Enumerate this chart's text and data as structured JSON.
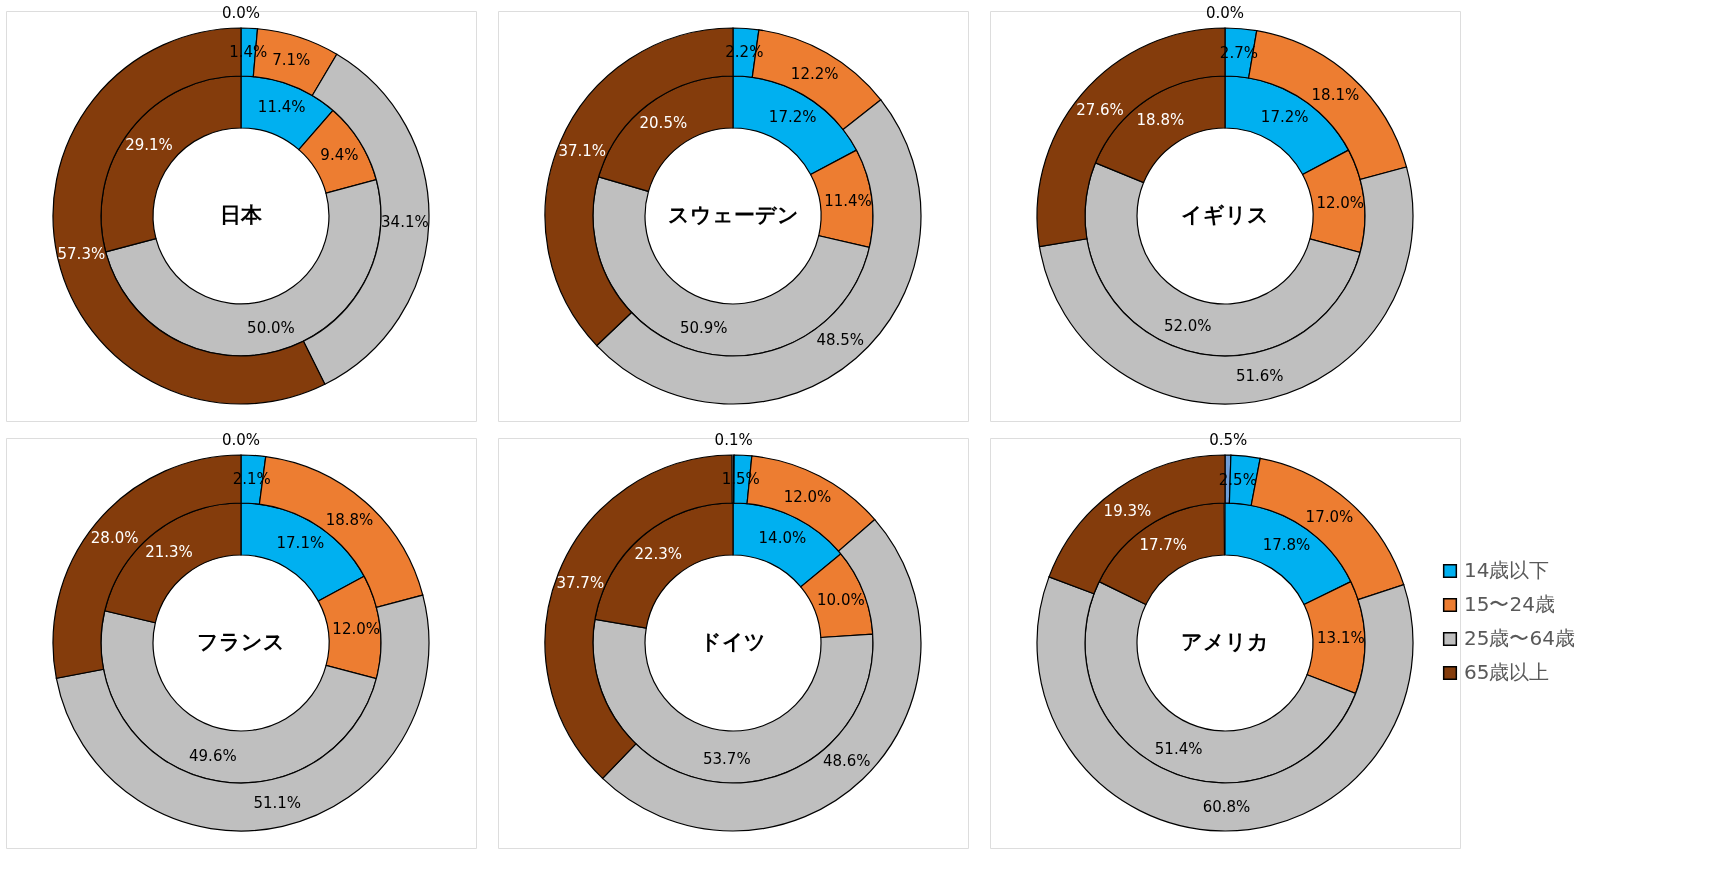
{
  "chart_data": [
    {
      "type": "donut",
      "title": "日本",
      "legend": false,
      "data_labels": false,
      "categories": [
        null,
        null,
        null,
        null,
        null
      ],
      "colors": [
        "#6f9fd8",
        "#00b0f0",
        "#ed7d31",
        "#bfbfbf",
        "#843c0c"
      ],
      "series": [
        {
          "values": [
            null,
            11.4,
            9.4,
            50.0,
            29.1
          ],
          "value_labels": [
            null,
            "11.4%",
            "9.4%",
            "50.0%",
            "29.1%"
          ]
        },
        {
          "values": [
            0.0,
            1.4,
            7.1,
            34.1,
            57.3
          ],
          "value_labels": [
            "0.0%",
            "1.4%",
            "7.1%",
            "34.1%",
            "57.3%"
          ]
        }
      ]
    },
    {
      "type": "donut",
      "title": "スウェーデン",
      "legend": false,
      "data_labels": false,
      "categories": [
        null,
        null,
        null,
        null,
        null
      ],
      "colors": [
        "#6f9fd8",
        "#00b0f0",
        "#ed7d31",
        "#bfbfbf",
        "#843c0c"
      ],
      "series": [
        {
          "values": [
            null,
            17.2,
            11.4,
            50.9,
            20.5
          ],
          "value_labels": [
            null,
            "17.2%",
            "11.4%",
            "50.9%",
            "20.5%"
          ]
        },
        {
          "values": [
            null,
            2.2,
            12.2,
            48.5,
            37.1
          ],
          "value_labels": [
            null,
            "2.2%",
            "12.2%",
            "48.5%",
            "37.1%"
          ]
        }
      ]
    },
    {
      "type": "donut",
      "title": "イギリス",
      "legend": false,
      "data_labels": false,
      "categories": [
        null,
        null,
        null,
        null,
        null
      ],
      "colors": [
        "#6f9fd8",
        "#00b0f0",
        "#ed7d31",
        "#bfbfbf",
        "#843c0c"
      ],
      "series": [
        {
          "values": [
            null,
            17.2,
            12.0,
            52.0,
            18.8
          ],
          "value_labels": [
            null,
            "17.2%",
            "12.0%",
            "52.0%",
            "18.8%"
          ]
        },
        {
          "values": [
            0.0,
            2.7,
            18.1,
            51.6,
            27.6
          ],
          "value_labels": [
            "0.0%",
            "2.7%",
            "18.1%",
            "51.6%",
            "27.6%"
          ]
        }
      ]
    },
    {
      "type": "donut",
      "title": "フランス",
      "legend": false,
      "data_labels": false,
      "categories": [
        null,
        null,
        null,
        null,
        null
      ],
      "colors": [
        "#6f9fd8",
        "#00b0f0",
        "#ed7d31",
        "#bfbfbf",
        "#843c0c"
      ],
      "series": [
        {
          "values": [
            null,
            17.1,
            12.0,
            49.6,
            21.3
          ],
          "value_labels": [
            null,
            "17.1%",
            "12.0%",
            "49.6%",
            "21.3%"
          ]
        },
        {
          "values": [
            0.0,
            2.1,
            18.8,
            51.1,
            28.0
          ],
          "value_labels": [
            "0.0%",
            "2.1%",
            "18.8%",
            "51.1%",
            "28.0%"
          ]
        }
      ]
    },
    {
      "type": "donut",
      "title": "ドイツ",
      "legend": false,
      "data_labels": false,
      "categories": [
        null,
        null,
        null,
        null,
        null
      ],
      "colors": [
        "#6f9fd8",
        "#00b0f0",
        "#ed7d31",
        "#bfbfbf",
        "#843c0c"
      ],
      "series": [
        {
          "values": [
            null,
            14.0,
            10.0,
            53.7,
            22.3
          ],
          "value_labels": [
            null,
            "14.0%",
            "10.0%",
            "53.7%",
            "22.3%"
          ]
        },
        {
          "values": [
            0.1,
            1.5,
            12.0,
            48.6,
            37.7
          ],
          "value_labels": [
            "0.1%",
            "1.5%",
            "12.0%",
            "48.6%",
            "37.7%"
          ]
        }
      ]
    },
    {
      "type": "donut",
      "title": "アメリカ",
      "legend": "right",
      "data_labels": false,
      "categories": [
        null,
        "14歳以下",
        "15〜24歳",
        "25歳〜64歳",
        "65歳以上"
      ],
      "colors": [
        "#6f9fd8",
        "#00b0f0",
        "#ed7d31",
        "#bfbfbf",
        "#843c0c"
      ],
      "series": [
        {
          "values": [
            null,
            17.8,
            13.1,
            51.4,
            17.7
          ],
          "value_labels": [
            null,
            "17.8%",
            "13.1%",
            "51.4%",
            "17.7%"
          ]
        },
        {
          "values": [
            0.5,
            2.5,
            17.0,
            60.8,
            19.3
          ],
          "value_labels": [
            "0.5%",
            "2.5%",
            "17.0%",
            "60.8%",
            "19.3%"
          ]
        }
      ]
    }
  ]
}
